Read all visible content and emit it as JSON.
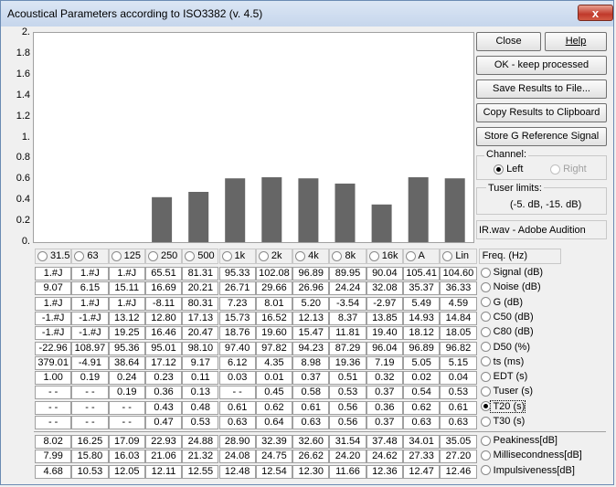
{
  "window": {
    "title": "Acoustical Parameters according to ISO3382 (v. 4.5)",
    "close_glyph": "x"
  },
  "chart_data": {
    "type": "bar",
    "categories": [
      "31.5",
      "63",
      "125",
      "250",
      "500",
      "1k",
      "2k",
      "4k",
      "8k",
      "16k",
      "A",
      "Lin"
    ],
    "values": [
      null,
      null,
      null,
      0.43,
      0.48,
      0.61,
      0.62,
      0.61,
      0.56,
      0.36,
      0.62,
      0.61
    ],
    "ylim": [
      0,
      2
    ],
    "yticks": [
      "2.",
      "1.8",
      "1.6",
      "1.4",
      "1.2",
      "1.",
      "0.8",
      "0.6",
      "0.4",
      "0.2",
      "0."
    ],
    "bar_color": "#666666"
  },
  "buttons": {
    "close": "Close",
    "help": "Help",
    "ok": "OK - keep processed",
    "save": "Save Results to File...",
    "copy": "Copy Results to Clipboard",
    "store": "Store G Reference Signal"
  },
  "channel": {
    "label": "Channel:",
    "left": "Left",
    "right": "Right"
  },
  "tuser": {
    "label": "Tuser  limits:",
    "value": "(-5. dB, -15. dB)"
  },
  "file": {
    "name": "IR.wav - Adobe Audition"
  },
  "freq_header": "Freq. (Hz)",
  "bands": [
    "31.5",
    "63",
    "125",
    "250",
    "500",
    "1k",
    "2k",
    "4k",
    "8k",
    "16k",
    "A",
    "Lin"
  ],
  "rows": [
    {
      "label": "Signal (dB)",
      "values": [
        "1.#J",
        "1.#J",
        "1.#J",
        "65.51",
        "81.31",
        "95.33",
        "102.08",
        "96.89",
        "89.95",
        "90.04",
        "105.41",
        "104.60"
      ]
    },
    {
      "label": "Noise (dB)",
      "values": [
        "9.07",
        "6.15",
        "15.11",
        "16.69",
        "20.21",
        "26.71",
        "29.66",
        "26.96",
        "24.24",
        "32.08",
        "35.37",
        "36.33"
      ]
    },
    {
      "label": "G (dB)",
      "values": [
        "1.#J",
        "1.#J",
        "1.#J",
        "-8.11",
        "80.31",
        "7.23",
        "8.01",
        "5.20",
        "-3.54",
        "-2.97",
        "5.49",
        "4.59"
      ]
    },
    {
      "label": "C50 (dB)",
      "values": [
        "-1.#J",
        "-1.#J",
        "13.12",
        "12.80",
        "17.13",
        "15.73",
        "16.52",
        "12.13",
        "8.37",
        "13.85",
        "14.93",
        "14.84"
      ]
    },
    {
      "label": "C80 (dB)",
      "values": [
        "-1.#J",
        "-1.#J",
        "19.25",
        "16.46",
        "20.47",
        "18.76",
        "19.60",
        "15.47",
        "11.81",
        "19.40",
        "18.12",
        "18.05"
      ]
    },
    {
      "label": "D50 (%)",
      "values": [
        "-22.96",
        "108.97",
        "95.36",
        "95.01",
        "98.10",
        "97.40",
        "97.82",
        "94.23",
        "87.29",
        "96.04",
        "96.89",
        "96.82"
      ]
    },
    {
      "label": "ts (ms)",
      "values": [
        "379.01",
        "-4.91",
        "38.64",
        "17.12",
        "9.17",
        "6.12",
        "4.35",
        "8.98",
        "19.36",
        "7.19",
        "5.05",
        "5.15"
      ]
    },
    {
      "label": "EDT (s)",
      "values": [
        "1.00",
        "0.19",
        "0.24",
        "0.23",
        "0.11",
        "0.03",
        "0.01",
        "0.37",
        "0.51",
        "0.32",
        "0.02",
        "0.04"
      ]
    },
    {
      "label": "Tuser (s)",
      "values": [
        "- -",
        "- -",
        "0.19",
        "0.36",
        "0.13",
        "- -",
        "0.45",
        "0.58",
        "0.53",
        "0.37",
        "0.54",
        "0.53"
      ]
    },
    {
      "label": "T20 (s)",
      "values": [
        "- -",
        "- -",
        "- -",
        "0.43",
        "0.48",
        "0.61",
        "0.62",
        "0.61",
        "0.56",
        "0.36",
        "0.62",
        "0.61"
      ]
    },
    {
      "label": "T30 (s)",
      "values": [
        "- -",
        "- -",
        "- -",
        "0.47",
        "0.53",
        "0.63",
        "0.64",
        "0.63",
        "0.56",
        "0.37",
        "0.63",
        "0.63"
      ]
    }
  ],
  "rows2": [
    {
      "label": "Peakiness[dB]",
      "values": [
        "8.02",
        "16.25",
        "17.09",
        "22.93",
        "24.88",
        "28.90",
        "32.39",
        "32.60",
        "31.54",
        "37.48",
        "34.01",
        "35.05"
      ]
    },
    {
      "label": "Millisecondness[dB]",
      "values": [
        "7.99",
        "15.80",
        "16.03",
        "21.06",
        "21.32",
        "24.08",
        "24.75",
        "26.62",
        "24.20",
        "24.62",
        "27.33",
        "27.20"
      ]
    },
    {
      "label": "Impulsiveness[dB]",
      "values": [
        "4.68",
        "10.53",
        "12.05",
        "12.11",
        "12.55",
        "12.48",
        "12.54",
        "12.30",
        "11.66",
        "12.36",
        "12.47",
        "12.46"
      ]
    }
  ],
  "selected_row": 9
}
